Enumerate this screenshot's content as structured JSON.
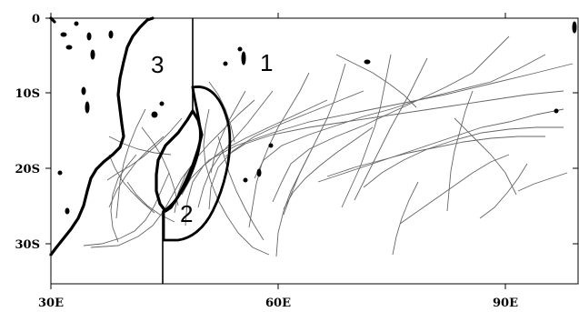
{
  "axes": {
    "x_ticks": [
      "30E",
      "60E",
      "90E"
    ],
    "y_ticks": [
      "0",
      "10S",
      "20S",
      "30S"
    ]
  },
  "regions": [
    {
      "id": "1",
      "label": "1"
    },
    {
      "id": "2",
      "label": "2"
    },
    {
      "id": "3",
      "label": "3"
    }
  ],
  "style": {
    "track_color": "#666666",
    "coast_color": "#000000",
    "background": "#ffffff"
  }
}
